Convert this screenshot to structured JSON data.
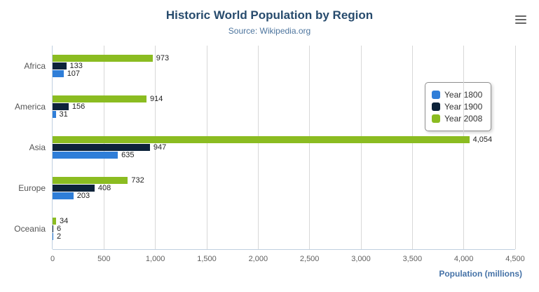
{
  "header": {
    "title": "Historic World Population by Region",
    "subtitle": "Source: Wikipedia.org"
  },
  "menu": {
    "icon": "hamburger-icon"
  },
  "chart_data": {
    "type": "bar",
    "orientation": "horizontal",
    "title": "Historic World Population by Region",
    "subtitle": "Source: Wikipedia.org",
    "categories": [
      "Africa",
      "America",
      "Asia",
      "Europe",
      "Oceania"
    ],
    "series": [
      {
        "name": "Year 1800",
        "color": "#2f7ed8",
        "values": [
          107,
          31,
          635,
          203,
          2
        ]
      },
      {
        "name": "Year 1900",
        "color": "#0d233a",
        "values": [
          133,
          156,
          947,
          408,
          6
        ]
      },
      {
        "name": "Year 2008",
        "color": "#8bbc21",
        "values": [
          973,
          914,
          4054,
          732,
          34
        ]
      }
    ],
    "bar_order_top_to_bottom": [
      "Year 2008",
      "Year 1900",
      "Year 1800"
    ],
    "xlabel": "Population (millions)",
    "ylabel": "",
    "xlim": [
      0,
      4500
    ],
    "xticks": [
      0,
      500,
      1000,
      1500,
      2000,
      2500,
      3000,
      3500,
      4000,
      4500
    ],
    "xtick_labels": [
      "0",
      "500",
      "1,000",
      "1,500",
      "2,000",
      "2,500",
      "3,000",
      "3,500",
      "4,000",
      "4,500"
    ],
    "grid": true,
    "legend_position": "right"
  },
  "xaxis": {
    "title": "Population (millions)"
  }
}
